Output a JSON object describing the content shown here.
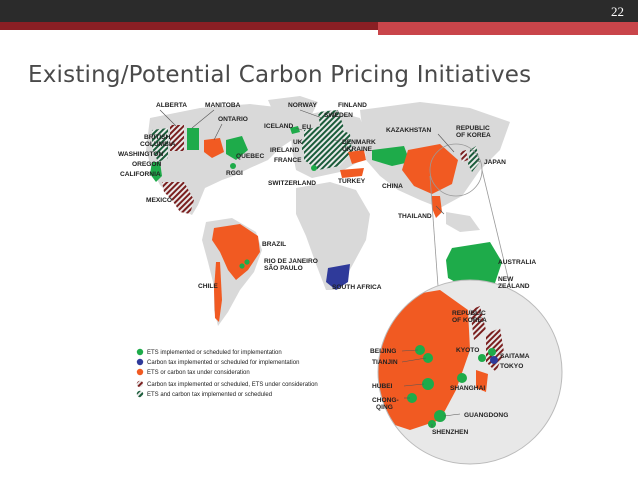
{
  "slide": {
    "page_number": "22",
    "title": "Existing/Potential Carbon Pricing Initiatives"
  },
  "colors": {
    "ets": "#1eab4a",
    "carbon_tax": "#2f3a9a",
    "under_consideration": "#f15a22",
    "land": "#d9d9d9"
  },
  "regions": {
    "alberta": "ALBERTA",
    "manitoba": "MANITOBA",
    "ontario": "ONTARIO",
    "british_columbia": "BRITISH\nCOLUMBIA",
    "bc_line1": "BRITISH",
    "bc_line2": "COLUMBIA",
    "washington": "WASHINGTON",
    "oregon": "OREGON",
    "california": "CALIFORNIA",
    "quebec": "QUEBEC",
    "rggi": "RGGI",
    "mexico": "MEXICO",
    "norway": "NORWAY",
    "finland": "FINLAND",
    "sweden": "SWEDEN",
    "iceland": "ICELAND",
    "eu": "EU",
    "uk": "UK",
    "ireland": "IRELAND",
    "france": "FRANCE",
    "denmark": "DENMARK",
    "ukraine": "UKRAINE",
    "switzerland": "SWITZERLAND",
    "turkey": "TURKEY",
    "kazakhstan": "KAZAKHSTAN",
    "republic_of_korea_1": "REPUBLIC",
    "republic_of_korea_2": "OF KOREA",
    "japan": "JAPAN",
    "china": "CHINA",
    "thailand": "THAILAND",
    "brazil": "BRAZIL",
    "rio": "RIO DE JANEIRO",
    "sao_paulo": "SÃO PAULO",
    "chile": "CHILE",
    "south_africa": "SOUTH AFRICA",
    "australia": "AUSTRALIA",
    "nz_1": "NEW",
    "nz_2": "ZEALAND"
  },
  "inset": {
    "korea_1": "REPUBLIC",
    "korea_2": "OF KOREA",
    "beijing": "BEIJING",
    "tianjin": "TIANJIN",
    "kyoto": "KYOTO",
    "saitama": "SAITAMA",
    "tokyo": "TOKYO",
    "shanghai": "SHANGHAI",
    "hubei": "HUBEI",
    "chongqing_1": "CHONG-",
    "chongqing_2": "QING",
    "guangdong": "GUANGDONG",
    "shenzhen": "SHENZHEN"
  },
  "legend": [
    {
      "text": "ETS implemented or scheduled for implementation",
      "icon": "green-dot"
    },
    {
      "text": "Carbon tax implemented or scheduled for implementation",
      "icon": "blue-dot"
    },
    {
      "text": "ETS or carbon tax under consideration",
      "icon": "orange-dot"
    },
    {
      "text": "Carbon tax implemented or scheduled, ETS under consideration",
      "icon": "stripe-red-dot"
    },
    {
      "text": "ETS and carbon tax implemented or scheduled",
      "icon": "stripe-green-dot"
    }
  ]
}
